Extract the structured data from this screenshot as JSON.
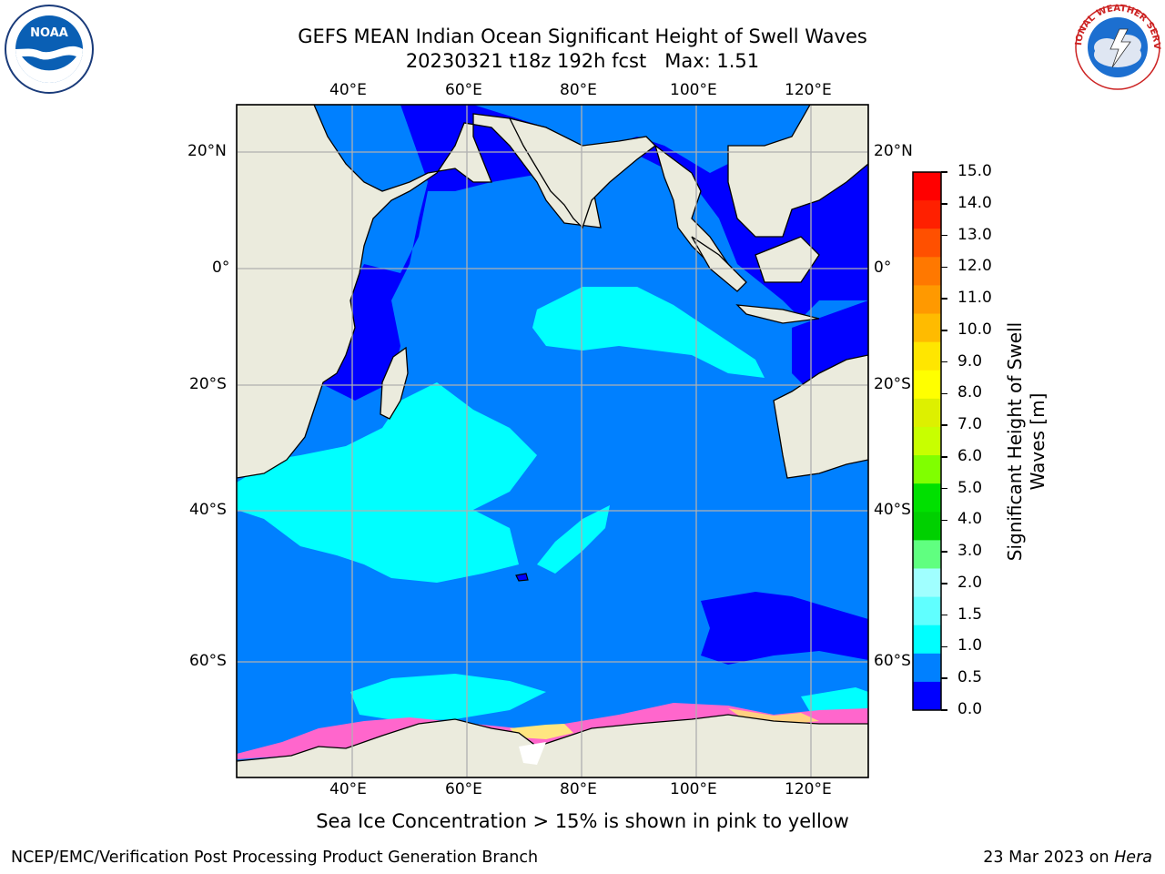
{
  "title": {
    "line1": "GEFS MEAN Indian Ocean Significant Height of Swell Waves",
    "line2": "20230321 t18z 192h fcst   Max: 1.51"
  },
  "logos": {
    "left": "NOAA",
    "left_ring": "NATIONAL OCEANIC AND ATMOSPHERIC ADMINISTRATION · U.S. DEPARTMENT OF COMMERCE",
    "right_ring": "NATIONAL WEATHER SERVICE"
  },
  "map": {
    "lon_ticks": [
      "40°E",
      "60°E",
      "80°E",
      "100°E",
      "120°E"
    ],
    "lat_ticks": [
      "20°N",
      "0°",
      "20°S",
      "40°S",
      "60°S"
    ]
  },
  "colorbar": {
    "label": "Significant Height of Swell Waves [m]",
    "ticks": [
      "15.0",
      "14.0",
      "13.0",
      "12.0",
      "11.0",
      "10.0",
      "9.0",
      "8.0",
      "7.0",
      "6.0",
      "5.0",
      "4.0",
      "3.0",
      "2.0",
      "1.5",
      "1.0",
      "0.5",
      "0.0"
    ],
    "colors": [
      "#ff0000",
      "#ff2000",
      "#ff5000",
      "#ff7800",
      "#ff9900",
      "#ffbb00",
      "#ffe600",
      "#ffff00",
      "#ddf000",
      "#c8ff00",
      "#80ff00",
      "#00e000",
      "#00d000",
      "#60ff80",
      "#a0ffff",
      "#60ffff",
      "#00ffff",
      "#0080ff",
      "#0000ff"
    ]
  },
  "note": "Sea Ice Concentration > 15% is shown in pink to yellow",
  "footer": {
    "left": "NCEP/EMC/Verification Post Processing Product Generation Branch",
    "date": "23 Mar 2023 on ",
    "machine": "Hera"
  }
}
